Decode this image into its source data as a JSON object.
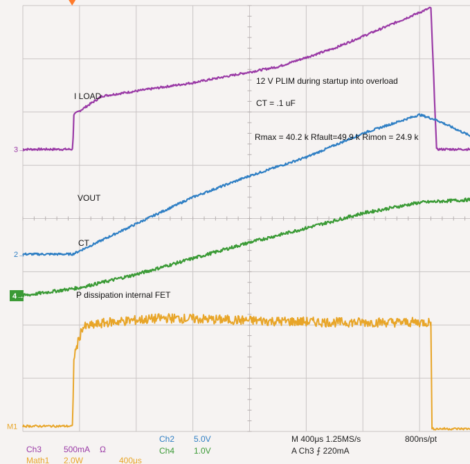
{
  "chart_data": {
    "type": "line",
    "title": "",
    "grid": true,
    "divisions": {
      "x": 8,
      "y": 8
    },
    "annotations": {
      "condition": "12 V PLIM during startup into overload",
      "ct": "CT = .1 uF",
      "resistors": "Rmax = 40.2 k  Rfault=49.9  k Rimon = 24.9 k"
    },
    "series": [
      {
        "name": "I LOAD",
        "channel": "Ch3",
        "marker": "3",
        "color": "#9a3aa6",
        "x_div": [
          0.0,
          0.88,
          0.9,
          1.4,
          3.0,
          4.5,
          5.5,
          6.4,
          7.2,
          7.3,
          8.0
        ],
        "y_div": [
          5.3,
          5.3,
          5.95,
          6.3,
          6.55,
          6.85,
          7.2,
          7.6,
          7.96,
          5.3,
          5.3
        ]
      },
      {
        "name": "VOUT",
        "channel": "Ch2",
        "marker": "2",
        "color": "#2f7fc4",
        "x_div": [
          0.0,
          0.88,
          2.0,
          3.0,
          4.0,
          5.0,
          6.0,
          7.0,
          7.3,
          8.0
        ],
        "y_div": [
          3.33,
          3.33,
          3.9,
          4.4,
          4.8,
          5.15,
          5.6,
          5.95,
          5.85,
          5.5
        ],
        "scale": "5.0V"
      },
      {
        "name": "CT",
        "channel": "Ch4",
        "marker": "4",
        "color": "#3a9a35",
        "x_div": [
          0.0,
          1.0,
          2.0,
          3.0,
          4.0,
          5.0,
          6.0,
          7.0,
          8.0
        ],
        "y_div": [
          2.55,
          2.7,
          2.95,
          3.25,
          3.55,
          3.82,
          4.1,
          4.3,
          4.36
        ],
        "scale": "1.0V"
      },
      {
        "name": "P dissipation internal FET",
        "channel": "M1",
        "marker": "M1",
        "color": "#e8a528",
        "x_div": [
          0.0,
          0.88,
          0.9,
          1.05,
          1.5,
          2.5,
          3.5,
          4.5,
          5.5,
          6.5,
          7.2,
          7.22,
          8.0
        ],
        "y_div": [
          0.1,
          0.1,
          1.4,
          1.95,
          2.05,
          2.13,
          2.1,
          2.07,
          2.05,
          2.05,
          2.05,
          0.05,
          0.05
        ]
      }
    ]
  },
  "status": {
    "ch3": "Ch3",
    "ch3_scale": "500mA",
    "ch3_unit": "Ω",
    "ch2": "Ch2",
    "ch2_scale": "5.0V",
    "ch4": "Ch4",
    "ch4_scale": "1.0V",
    "timebase": "M 400μs 1.25MS/s",
    "resolution": "800ns/pt",
    "trigger": "A  Ch3  ⨍  220mA",
    "math_label": "Math1",
    "math_scale": "2.0W",
    "math_time": "400μs"
  }
}
